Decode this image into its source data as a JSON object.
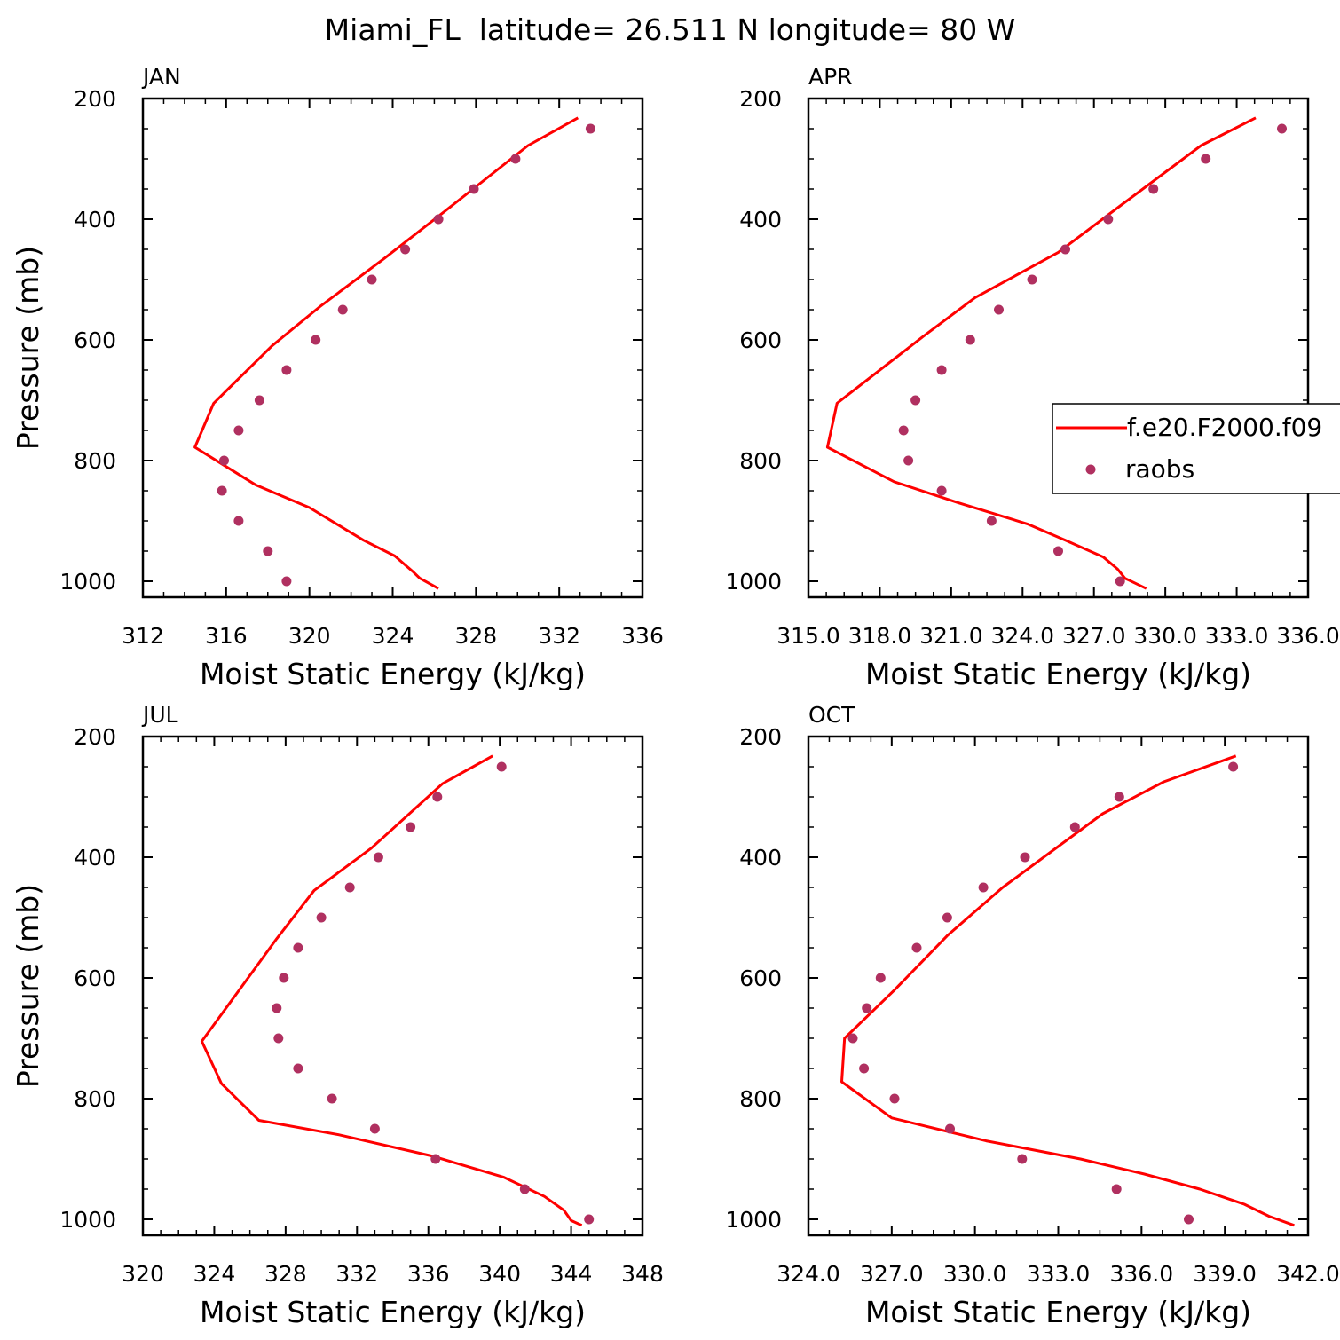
{
  "title": "Miami_FL  latitude= 26.511 N longitude= 80 W",
  "legend": {
    "model_label": "f.e20.F2000.f09",
    "obs_label": "raobs",
    "colors": {
      "model": "#ff0000",
      "obs": "#b03060"
    }
  },
  "chart_data": [
    {
      "type": "line",
      "panel": "JAN",
      "xlabel": "Moist Static Energy (kJ/kg)",
      "ylabel": "Pressure (mb)",
      "xlim": [
        312,
        336
      ],
      "ylim": [
        1025,
        200
      ],
      "xticks": [
        "312",
        "316",
        "320",
        "324",
        "328",
        "332",
        "336"
      ],
      "yticks": [
        "200",
        "400",
        "600",
        "800",
        "1000"
      ],
      "series": [
        {
          "name": "f.e20.F2000.f09",
          "kind": "line",
          "x": [
            332.9,
            330.5,
            326.5,
            323.6,
            320.5,
            318.2,
            315.4,
            314.5,
            317.4,
            320.0,
            322.6,
            324.1,
            325.0,
            325.3,
            326.2
          ],
          "y": [
            232,
            278,
            387,
            465,
            545,
            610,
            705,
            778,
            840,
            878,
            932,
            958,
            985,
            995,
            1012
          ]
        },
        {
          "name": "raobs",
          "kind": "scatter",
          "x": [
            333.5,
            329.9,
            327.9,
            326.2,
            324.6,
            323.0,
            321.6,
            320.3,
            318.9,
            317.6,
            316.6,
            315.9,
            315.8,
            316.6,
            318.0,
            318.9
          ],
          "y": [
            250,
            300,
            350,
            400,
            450,
            500,
            550,
            600,
            650,
            700,
            750,
            800,
            850,
            900,
            950,
            1000
          ]
        }
      ]
    },
    {
      "type": "line",
      "panel": "APR",
      "xlabel": "Moist Static Energy (kJ/kg)",
      "ylabel": "",
      "xlim": [
        315,
        336
      ],
      "ylim": [
        1025,
        200
      ],
      "xticks": [
        "315.0",
        "318.0",
        "321.0",
        "324.0",
        "327.0",
        "330.0",
        "333.0",
        "336.0"
      ],
      "yticks": [
        "200",
        "400",
        "600",
        "800",
        "1000"
      ],
      "series": [
        {
          "name": "f.e20.F2000.f09",
          "kind": "line",
          "x": [
            333.8,
            331.5,
            328.2,
            325.5,
            322.0,
            319.8,
            316.2,
            315.8,
            318.6,
            321.3,
            324.2,
            325.8,
            327.4,
            328.0,
            328.3,
            329.2
          ],
          "y": [
            232,
            278,
            375,
            455,
            530,
            595,
            705,
            778,
            835,
            870,
            905,
            932,
            960,
            980,
            995,
            1012
          ]
        },
        {
          "name": "raobs",
          "kind": "scatter",
          "x": [
            334.9,
            331.7,
            329.5,
            327.6,
            325.8,
            324.4,
            323.0,
            321.8,
            320.6,
            319.5,
            319.0,
            319.2,
            320.6,
            322.7,
            325.5,
            328.1
          ],
          "y": [
            250,
            300,
            350,
            400,
            450,
            500,
            550,
            600,
            650,
            700,
            750,
            800,
            850,
            900,
            950,
            1000
          ]
        }
      ]
    },
    {
      "type": "line",
      "panel": "JUL",
      "xlabel": "Moist Static Energy (kJ/kg)",
      "ylabel": "Pressure (mb)",
      "xlim": [
        320,
        348
      ],
      "ylim": [
        1025,
        200
      ],
      "xticks": [
        "320",
        "324",
        "328",
        "332",
        "336",
        "340",
        "344",
        "348"
      ],
      "yticks": [
        "200",
        "400",
        "600",
        "800",
        "1000"
      ],
      "series": [
        {
          "name": "f.e20.F2000.f09",
          "kind": "line",
          "x": [
            339.6,
            336.8,
            332.8,
            329.6,
            327.5,
            325.4,
            323.3,
            324.4,
            326.5,
            331.0,
            336.2,
            340.2,
            342.5,
            343.6,
            344.0,
            344.6
          ],
          "y": [
            232,
            278,
            385,
            455,
            535,
            620,
            705,
            775,
            836,
            860,
            895,
            930,
            962,
            985,
            1002,
            1010
          ]
        },
        {
          "name": "raobs",
          "kind": "scatter",
          "x": [
            340.1,
            336.5,
            335.0,
            333.2,
            331.6,
            330.0,
            328.7,
            327.9,
            327.5,
            327.6,
            328.7,
            330.6,
            333.0,
            336.4,
            341.4,
            345.0
          ],
          "y": [
            250,
            300,
            350,
            400,
            450,
            500,
            550,
            600,
            650,
            700,
            750,
            800,
            850,
            900,
            950,
            1000
          ]
        }
      ]
    },
    {
      "type": "line",
      "panel": "OCT",
      "xlabel": "Moist Static Energy (kJ/kg)",
      "ylabel": "",
      "xlim": [
        324,
        342
      ],
      "ylim": [
        1025,
        200
      ],
      "xticks": [
        "324.0",
        "327.0",
        "330.0",
        "333.0",
        "336.0",
        "339.0",
        "342.0"
      ],
      "yticks": [
        "200",
        "400",
        "600",
        "800",
        "1000"
      ],
      "series": [
        {
          "name": "f.e20.F2000.f09",
          "kind": "line",
          "x": [
            339.4,
            336.8,
            334.6,
            331.0,
            329.0,
            327.1,
            325.3,
            325.2,
            327.0,
            330.4,
            333.8,
            336.1,
            338.1,
            339.7,
            340.6,
            341.5
          ],
          "y": [
            232,
            275,
            328,
            450,
            530,
            620,
            700,
            772,
            832,
            870,
            900,
            925,
            950,
            975,
            995,
            1010
          ]
        },
        {
          "name": "raobs",
          "kind": "scatter",
          "x": [
            339.3,
            335.2,
            333.6,
            331.8,
            330.3,
            329.0,
            327.9,
            326.6,
            326.1,
            325.6,
            326.0,
            327.1,
            329.1,
            331.7,
            335.1,
            337.7
          ],
          "y": [
            250,
            300,
            350,
            400,
            450,
            500,
            550,
            600,
            650,
            700,
            750,
            800,
            850,
            900,
            950,
            1000
          ]
        }
      ]
    }
  ]
}
